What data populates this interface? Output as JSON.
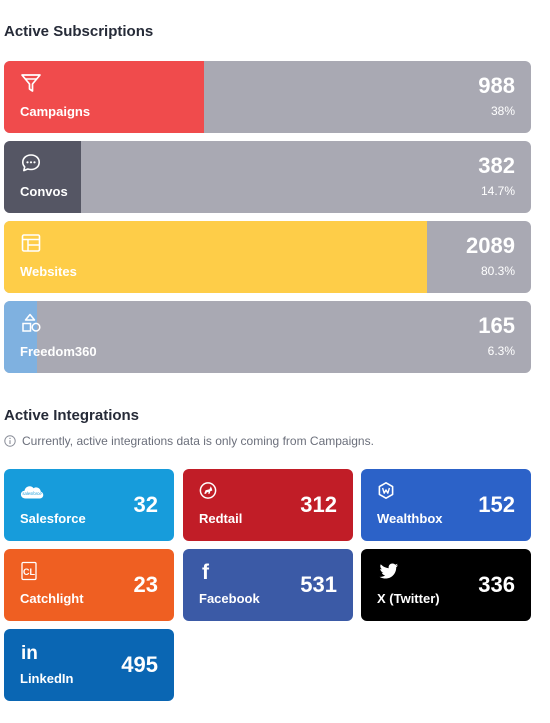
{
  "subscriptions": {
    "title": "Active Subscriptions",
    "items": [
      {
        "label": "Campaigns",
        "count": "988",
        "percent": "38%",
        "fraction": 0.38,
        "color": "#f04b4c",
        "icon": "funnel-icon"
      },
      {
        "label": "Convos",
        "count": "382",
        "percent": "14.7%",
        "fraction": 0.147,
        "color": "#555664",
        "icon": "chat-bubble-icon"
      },
      {
        "label": "Websites",
        "count": "2089",
        "percent": "80.3%",
        "fraction": 0.803,
        "color": "#fecd48",
        "icon": "website-layout-icon"
      },
      {
        "label": "Freedom360",
        "count": "165",
        "percent": "6.3%",
        "fraction": 0.063,
        "color": "#7fb1e0",
        "icon": "shapes-icon"
      }
    ],
    "track_color": "#a9a9b3"
  },
  "integrations": {
    "title": "Active Integrations",
    "note": "Currently, active integrations data is only coming from Campaigns.",
    "items": [
      {
        "label": "Salesforce",
        "count": "32",
        "color": "#179cdb",
        "icon": "salesforce-cloud-icon",
        "logo_text": "salesforce"
      },
      {
        "label": "Redtail",
        "count": "312",
        "color": "#c11d27",
        "icon": "redtail-dog-icon"
      },
      {
        "label": "Wealthbox",
        "count": "152",
        "color": "#2c62c8",
        "icon": "wealthbox-logo-icon"
      },
      {
        "label": "Catchlight",
        "count": "23",
        "color": "#ef5f22",
        "icon": "catchlight-logo-icon",
        "logo_text": "CL"
      },
      {
        "label": "Facebook",
        "count": "531",
        "color": "#3b5aa6",
        "icon": "facebook-icon",
        "logo_text": "f"
      },
      {
        "label": "X (Twitter)",
        "count": "336",
        "color": "#000000",
        "icon": "twitter-bird-icon"
      },
      {
        "label": "LinkedIn",
        "count": "495",
        "color": "#0a66b3",
        "icon": "linkedin-icon",
        "logo_text": "in"
      }
    ]
  }
}
